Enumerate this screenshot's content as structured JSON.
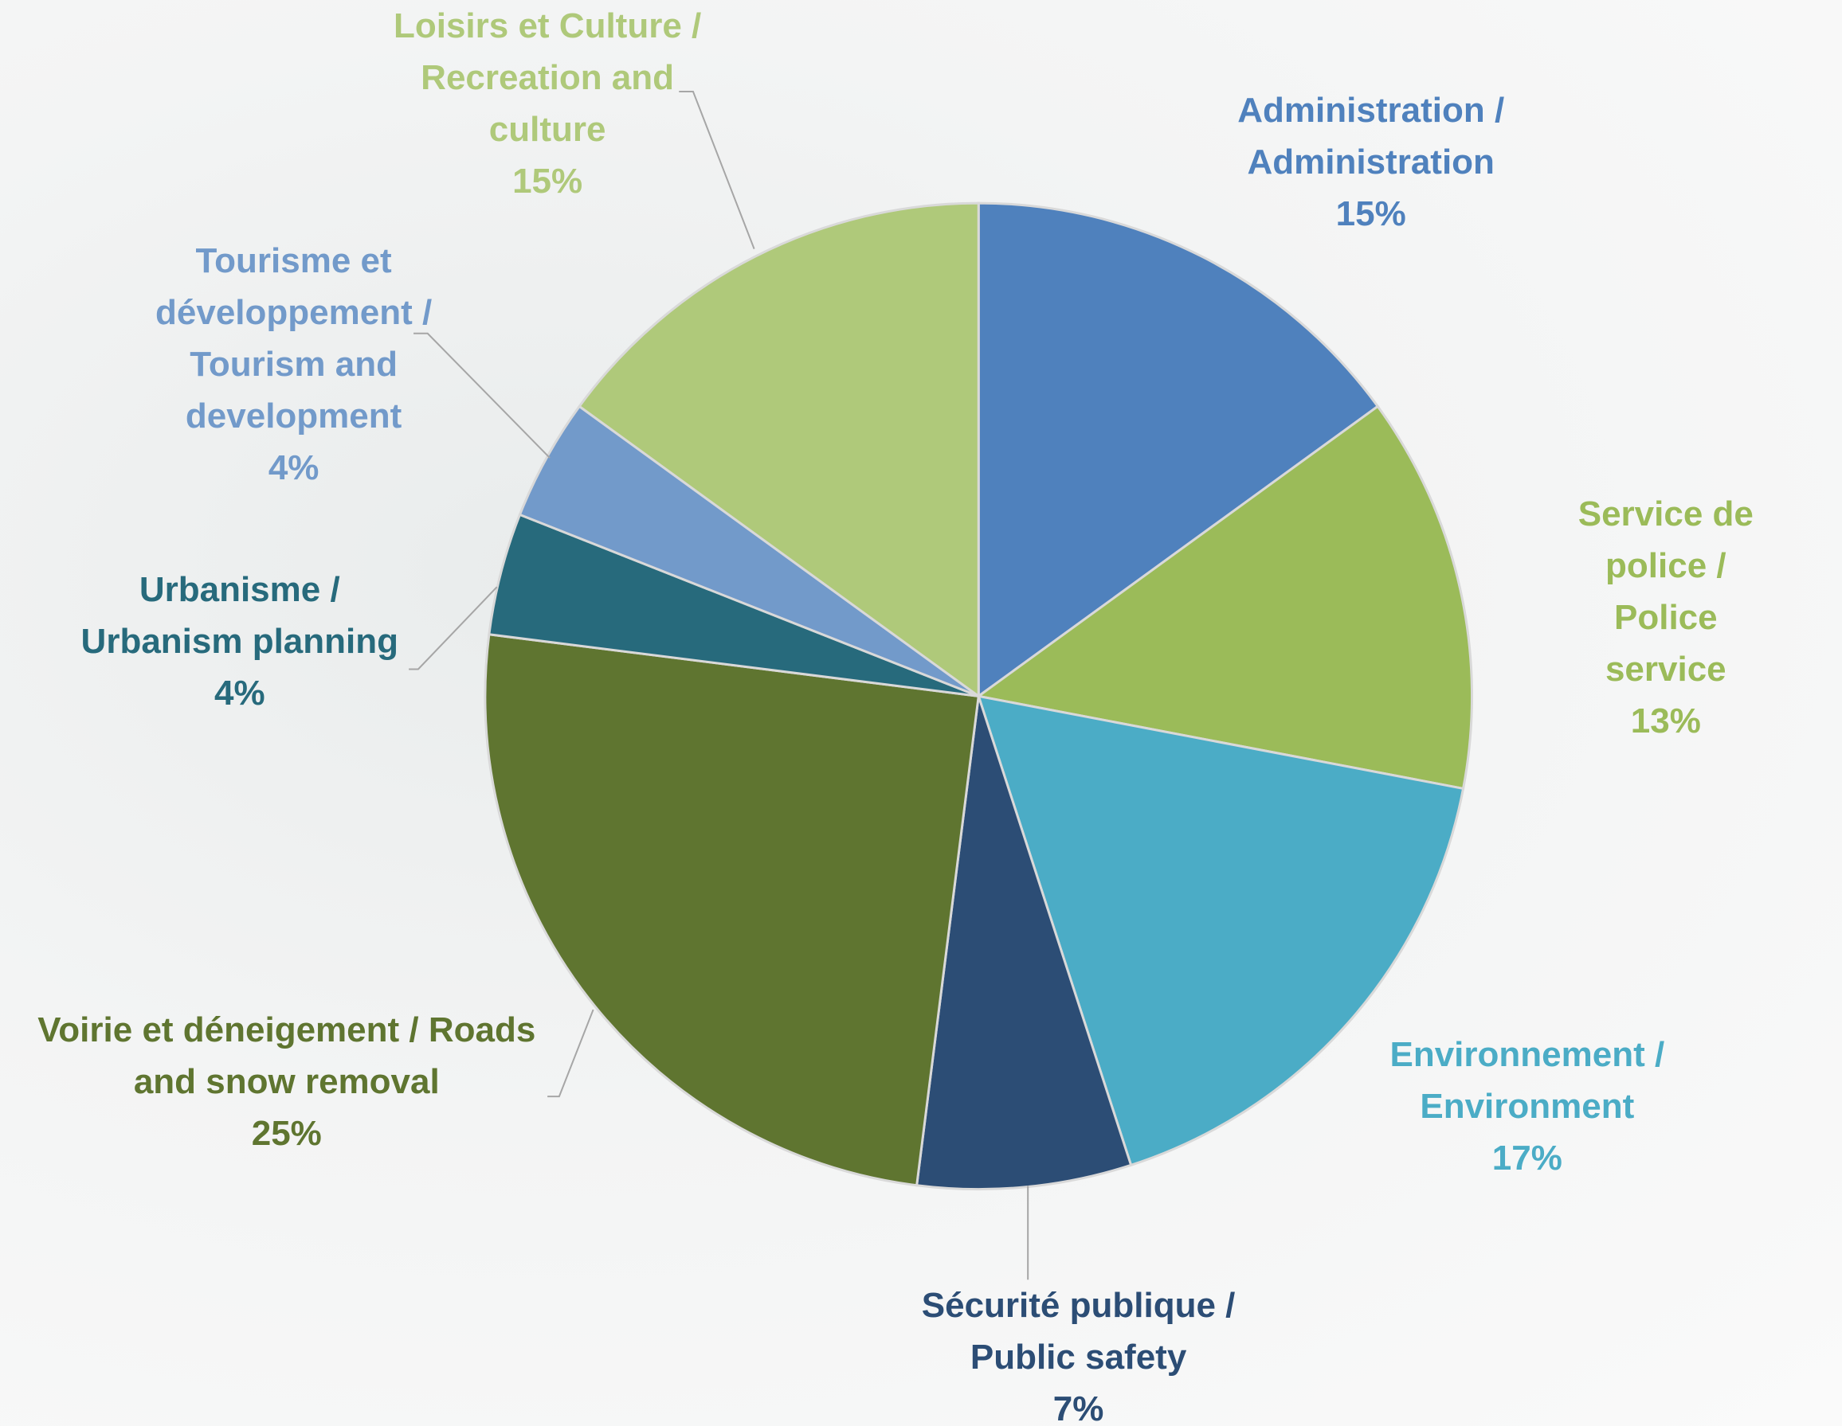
{
  "chart_data": {
    "type": "pie",
    "categories": [
      "Administration /\nAdministration",
      "Service de police /\nPolice service",
      "Environnement /\nEnvironment",
      "Sécurité publique /\nPublic safety",
      "Voirie et déneigement / Roads\nand snow removal",
      "Urbanisme /\nUrbanism planning",
      "Tourisme et\ndéveloppement /\nTourism and\ndevelopment",
      "Loisirs et Culture /\nRecreation and\nculture"
    ],
    "values": [
      15,
      13,
      17,
      7,
      25,
      4,
      4,
      15
    ],
    "value_labels": [
      "15%",
      "13%",
      "17%",
      "7%",
      "25%",
      "4%",
      "4%",
      "15%"
    ],
    "colors": [
      "#4f81bd",
      "#9bbb59",
      "#4bacc6",
      "#2c4d75",
      "#5f7530",
      "#276a7c",
      "#729aca",
      "#afc97a"
    ]
  }
}
